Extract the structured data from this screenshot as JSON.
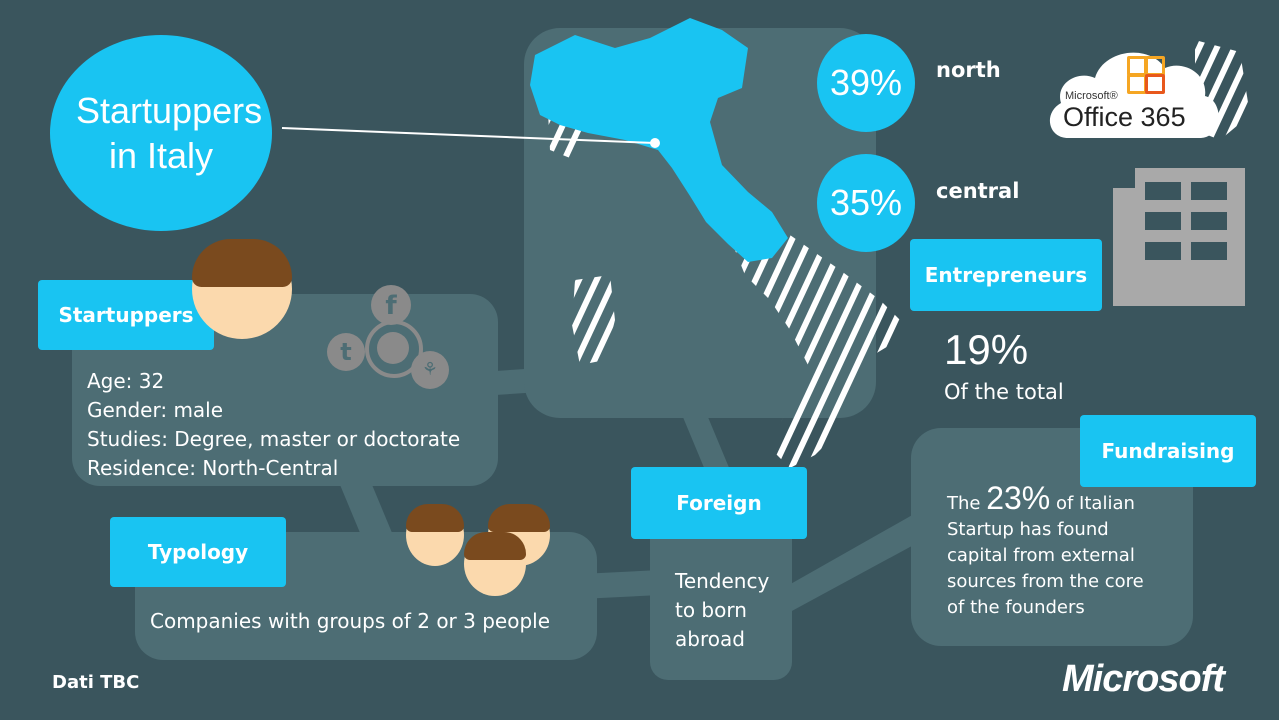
{
  "title": "Startuppers in Italy",
  "regions": [
    {
      "percent": "39%",
      "label": "north"
    },
    {
      "percent": "35%",
      "label": "central"
    }
  ],
  "office_logo": {
    "brand": "Microsoft®",
    "product": "Office 365"
  },
  "entrepreneurs": {
    "label": "Entrepreneurs",
    "value": "19%",
    "caption": "Of the total"
  },
  "startuppers": {
    "label": "Startuppers",
    "lines": [
      "Age: 32",
      "Gender: male",
      "Studies: Degree, master or doctorate",
      "Residence: North-Central"
    ]
  },
  "typology": {
    "label": "Typology",
    "text": "Companies with groups of 2 or 3 people"
  },
  "foreign": {
    "label": "Foreign",
    "lines": [
      "Tendency",
      "to born",
      "abroad"
    ]
  },
  "fundraising": {
    "label": "Fundraising",
    "prefix": "The ",
    "value": "23%",
    "text_first": " of Italian",
    "lines": [
      "Startup has found",
      "capital from external",
      "sources from the core",
      "of the founders"
    ]
  },
  "footer": {
    "source": "Dati TBC",
    "brand": "Microsoft"
  },
  "colors": {
    "background": "#3a555d",
    "panel": "#4d6d74",
    "accent": "#19c4f2",
    "building": "#a9a9a9"
  }
}
